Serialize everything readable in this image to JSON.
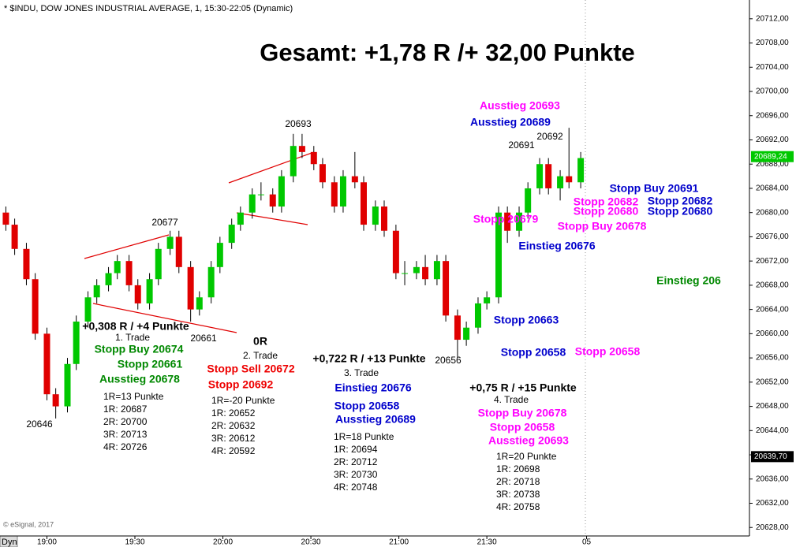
{
  "chart_data": {
    "type": "candlestick",
    "header": "* $INDU, DOW JONES INDUSTRIAL AVERAGE, 1, 15:30-22:05 (Dynamic)",
    "title": "Gesamt: +1,78 R /+ 32,00 Punkte",
    "footer": "© eSignal, 2017",
    "corner_label": "Dyn",
    "x": [
      "18:46",
      "18:49",
      "18:53",
      "18:56",
      "19:00",
      "19:03",
      "19:07",
      "19:10",
      "19:14",
      "19:17",
      "19:21",
      "19:24",
      "19:28",
      "19:31",
      "19:35",
      "19:38",
      "19:42",
      "19:45",
      "19:49",
      "19:52",
      "19:56",
      "19:59",
      "20:03",
      "20:06",
      "20:10",
      "20:13",
      "20:17",
      "20:20",
      "20:24",
      "20:27",
      "20:31",
      "20:34",
      "20:38",
      "20:41",
      "20:45",
      "20:48",
      "20:52",
      "20:55",
      "20:59",
      "21:02",
      "21:06",
      "21:09",
      "21:13",
      "21:16",
      "21:20",
      "21:23",
      "21:27",
      "21:30",
      "21:34",
      "21:37",
      "21:41",
      "21:44",
      "21:48",
      "21:51",
      "21:55",
      "21:58",
      "22:02"
    ],
    "open": [
      20680,
      20678,
      20674,
      20669,
      20660,
      20650,
      20648,
      20655,
      20662,
      20666,
      20668,
      20670,
      20672,
      20668,
      20665,
      20669,
      20674,
      20676,
      20671,
      20664,
      20666,
      20671,
      20675,
      20678,
      20680,
      20683,
      20683,
      20681,
      20686,
      20691,
      20690,
      20688,
      20685,
      20681,
      20686,
      20685,
      20678,
      20681,
      20677,
      20670,
      20670,
      20671,
      20669,
      20672,
      20663,
      20659,
      20661,
      20665,
      20666,
      20680,
      20677,
      20680,
      20684,
      20688,
      20684,
      20686,
      20685
    ],
    "high": [
      20681,
      20679,
      20675,
      20670,
      20661,
      20651,
      20656,
      20663,
      20667,
      20669,
      20671,
      20673,
      20673,
      20669,
      20670,
      20675,
      20677,
      20677,
      20672,
      20667,
      20672,
      20676,
      20679,
      20681,
      20684,
      20685,
      20684,
      20687,
      20693,
      20693,
      20691,
      20689,
      20686,
      20687,
      20690,
      20686,
      20682,
      20682,
      20678,
      20672,
      20672,
      20673,
      20673,
      20673,
      20664,
      20662,
      20666,
      20667,
      20681,
      20681,
      20681,
      20685,
      20689,
      20689,
      20687,
      20694,
      20690
    ],
    "low": [
      20677,
      20673,
      20668,
      20659,
      20649,
      20646,
      20647,
      20654,
      20661,
      20665,
      20667,
      20669,
      20667,
      20664,
      20664,
      20668,
      20673,
      20670,
      20662,
      20663,
      20665,
      20670,
      20674,
      20677,
      20679,
      20682,
      20680,
      20680,
      20685,
      20689,
      20687,
      20684,
      20680,
      20680,
      20684,
      20677,
      20677,
      20676,
      20669,
      20668,
      20669,
      20668,
      20668,
      20662,
      20656,
      20658,
      20660,
      20664,
      20665,
      20675,
      20676,
      20679,
      20683,
      20683,
      20682,
      20684,
      20684
    ],
    "close": [
      20678,
      20674,
      20669,
      20660,
      20650,
      20648,
      20655,
      20662,
      20666,
      20668,
      20670,
      20672,
      20668,
      20665,
      20669,
      20674,
      20676,
      20671,
      20664,
      20666,
      20671,
      20675,
      20678,
      20680,
      20683,
      20683,
      20681,
      20686,
      20691,
      20690,
      20688,
      20685,
      20681,
      20686,
      20685,
      20678,
      20681,
      20677,
      20670,
      20670,
      20671,
      20669,
      20672,
      20663,
      20659,
      20661,
      20665,
      20666,
      20680,
      20677,
      20680,
      20684,
      20688,
      20684,
      20686,
      20685,
      20689
    ],
    "colors": {
      "up": "#00c800",
      "down": "#e00000",
      "wick": "#000000"
    },
    "xlim": [
      "18:44",
      "22:59"
    ],
    "xticks": [
      "19:00",
      "19:30",
      "20:00",
      "20:30",
      "21:00",
      "21:30",
      {
        "value": "22:04",
        "label": "05"
      }
    ],
    "ylim": [
      20626.6,
      20715.1
    ],
    "yticks": [
      {
        "value": 20628,
        "label": "20628,00"
      },
      {
        "value": 20632,
        "label": "20632,00"
      },
      {
        "value": 20636,
        "label": "20636,00"
      },
      {
        "value": 20640,
        "label": "20640,00"
      },
      {
        "value": 20644,
        "label": "20644,00"
      },
      {
        "value": 20648,
        "label": "20648,00"
      },
      {
        "value": 20652,
        "label": "20652,00"
      },
      {
        "value": 20656,
        "label": "20656,00"
      },
      {
        "value": 20660,
        "label": "20660,00"
      },
      {
        "value": 20664,
        "label": "20664,00"
      },
      {
        "value": 20668,
        "label": "20668,00"
      },
      {
        "value": 20672,
        "label": "20672,00"
      },
      {
        "value": 20676,
        "label": "20676,00"
      },
      {
        "value": 20680,
        "label": "20680,00"
      },
      {
        "value": 20684,
        "label": "20684,00"
      },
      {
        "value": 20688,
        "label": "20688,00"
      },
      {
        "value": 20692,
        "label": "20692,00"
      },
      {
        "value": 20696,
        "label": "20696,00"
      },
      {
        "value": 20700,
        "label": "20700,00"
      },
      {
        "value": 20704,
        "label": "20704,00"
      },
      {
        "value": 20708,
        "label": "20708,00"
      },
      {
        "value": 20712,
        "label": "20712,00"
      }
    ],
    "price_labels": [
      {
        "value": 20689.24,
        "label": "20689,24",
        "color": "#00c800"
      },
      {
        "value": 20639.7,
        "label": "20639,70",
        "color": "#000000"
      }
    ],
    "annotations": [
      "20693",
      "20677",
      "20661",
      "20646",
      "20656",
      "20691",
      "20692",
      "Ausstieg 20693",
      "Ausstieg 20689",
      "Stopp Buy 20691",
      "Stopp 20682",
      "Stopp 20682",
      "Stopp 20680",
      "Stopp 20680",
      "Stopp 20679",
      "Stopp Buy 20678",
      "Einstieg 20676",
      "Einstieg 206",
      "Stopp 20663",
      "Stopp 20658",
      "Stopp 20658",
      "+0,308 R / +4 Punkte",
      "1. Trade",
      "Stopp Buy 20674",
      "Stopp 20661",
      "Ausstieg 20678",
      "1R=13 Punkte",
      "1R: 20687",
      "2R: 20700",
      "3R: 20713",
      "4R: 20726",
      "0R",
      "2. Trade",
      "Stopp Sell 20672",
      "Stopp 20692",
      "1R=-20 Punkte",
      "1R: 20652",
      "2R: 20632",
      "3R: 20612",
      "4R: 20592",
      "+0,722 R / +13 Punkte",
      "3. Trade",
      "Einstieg 20676",
      "Stopp 20658",
      "Ausstieg 20689",
      "1R=18 Punkte",
      "1R: 20694",
      "2R: 20712",
      "3R: 20730",
      "4R: 20748",
      "+0,75 R / +15 Punkte",
      "4. Trade",
      "Stopp Buy 20678",
      "Stopp 20658",
      "Ausstieg 20693",
      "1R=20 Punkte",
      "1R: 20698",
      "2R: 20718",
      "3R: 20738",
      "4R: 20758"
    ]
  }
}
